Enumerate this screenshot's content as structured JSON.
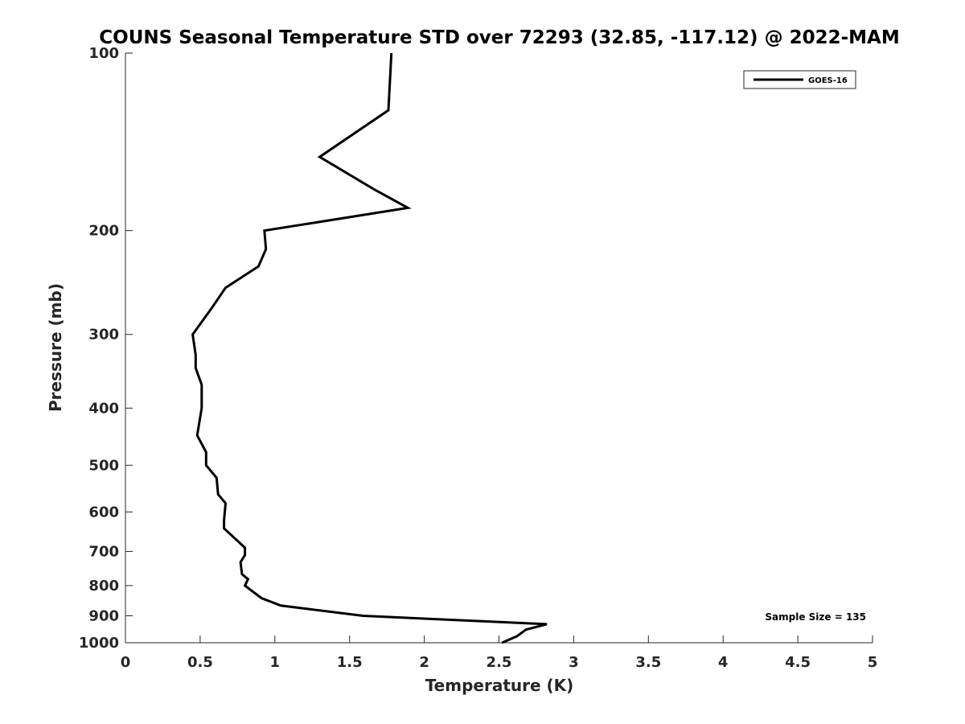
{
  "chart_data": {
    "type": "line",
    "title": "COUNS Seasonal Temperature STD over 72293 (32.85, -117.12) @ 2022-MAM",
    "xlabel": "Temperature (K)",
    "ylabel": "Pressure (mb)",
    "xlim": [
      0,
      5
    ],
    "ylim": [
      100,
      1000
    ],
    "y_scale": "log",
    "y_reversed": true,
    "x_ticks": [
      "0",
      "0.5",
      "1",
      "1.5",
      "2",
      "2.5",
      "3",
      "3.5",
      "4",
      "4.5",
      "5"
    ],
    "y_ticks": [
      "100",
      "200",
      "300",
      "400",
      "500",
      "600",
      "700",
      "800",
      "900",
      "1000"
    ],
    "grid": false,
    "legend_position": "top-right",
    "annotation": "Sample Size = 135",
    "series": [
      {
        "name": "GOES-16",
        "color": "#000000",
        "points": [
          {
            "t": 1.78,
            "p": 100
          },
          {
            "t": 1.76,
            "p": 125
          },
          {
            "t": 1.3,
            "p": 150
          },
          {
            "t": 1.66,
            "p": 170
          },
          {
            "t": 1.89,
            "p": 183
          },
          {
            "t": 0.93,
            "p": 200
          },
          {
            "t": 0.94,
            "p": 215
          },
          {
            "t": 0.89,
            "p": 230
          },
          {
            "t": 0.67,
            "p": 250
          },
          {
            "t": 0.58,
            "p": 270
          },
          {
            "t": 0.45,
            "p": 300
          },
          {
            "t": 0.47,
            "p": 325
          },
          {
            "t": 0.47,
            "p": 342
          },
          {
            "t": 0.51,
            "p": 365
          },
          {
            "t": 0.51,
            "p": 400
          },
          {
            "t": 0.48,
            "p": 445
          },
          {
            "t": 0.54,
            "p": 475
          },
          {
            "t": 0.54,
            "p": 500
          },
          {
            "t": 0.61,
            "p": 525
          },
          {
            "t": 0.62,
            "p": 560
          },
          {
            "t": 0.67,
            "p": 580
          },
          {
            "t": 0.66,
            "p": 620
          },
          {
            "t": 0.66,
            "p": 640
          },
          {
            "t": 0.8,
            "p": 690
          },
          {
            "t": 0.8,
            "p": 710
          },
          {
            "t": 0.77,
            "p": 730
          },
          {
            "t": 0.78,
            "p": 765
          },
          {
            "t": 0.82,
            "p": 780
          },
          {
            "t": 0.8,
            "p": 800
          },
          {
            "t": 0.91,
            "p": 840
          },
          {
            "t": 1.04,
            "p": 865
          },
          {
            "t": 1.59,
            "p": 900
          },
          {
            "t": 2.82,
            "p": 930
          },
          {
            "t": 2.68,
            "p": 950
          },
          {
            "t": 2.62,
            "p": 975
          },
          {
            "t": 2.52,
            "p": 1000
          }
        ]
      }
    ]
  }
}
